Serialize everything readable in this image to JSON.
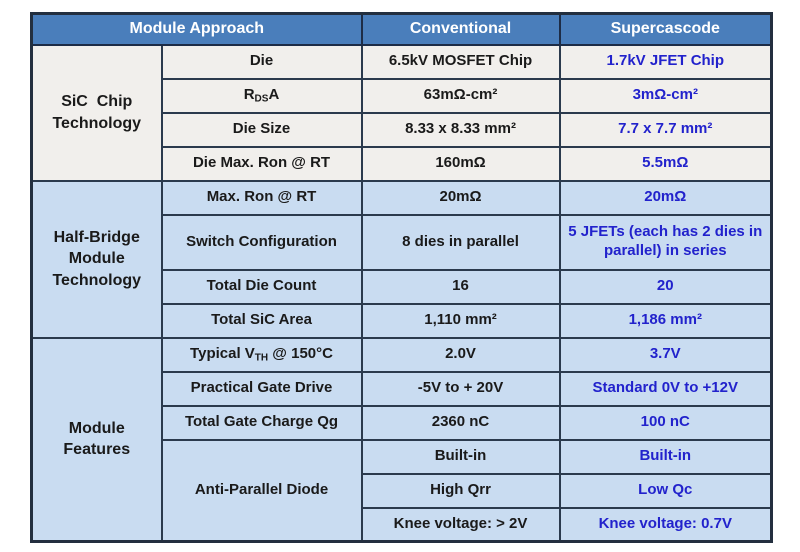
{
  "header": {
    "module_approach": "Module Approach",
    "conventional": "Conventional",
    "supercascode": "Supercascode"
  },
  "sections": [
    {
      "title": "SiC  Chip\nTechnology",
      "rows": [
        {
          "param": "Die",
          "conventional": "6.5kV MOSFET Chip",
          "supercascode": "1.7kV JFET Chip"
        },
        {
          "param_pre": "R",
          "param_sub": "DS",
          "param_post": "A",
          "conventional": "63mΩ-cm²",
          "supercascode": "3mΩ-cm²"
        },
        {
          "param": "Die Size",
          "conventional": "8.33 x 8.33 mm²",
          "supercascode": "7.7 x 7.7 mm²"
        },
        {
          "param": "Die Max. Ron @ RT",
          "conventional": "160mΩ",
          "supercascode": "5.5mΩ"
        }
      ]
    },
    {
      "title": "Half-Bridge\nModule\nTechnology",
      "rows": [
        {
          "param": "Max. Ron @ RT",
          "conventional": "20mΩ",
          "supercascode": "20mΩ"
        },
        {
          "param": "Switch Configuration",
          "conventional": "8 dies in parallel",
          "supercascode": "5 JFETs (each has 2 dies in parallel) in series"
        },
        {
          "param": "Total Die Count",
          "conventional": "16",
          "supercascode": "20"
        },
        {
          "param": "Total SiC Area",
          "conventional": "1,110 mm²",
          "supercascode": "1,186 mm²"
        }
      ]
    },
    {
      "title": "Module\nFeatures",
      "rows": [
        {
          "param_pre": "Typical V",
          "param_sub": "TH",
          "param_post": " @ 150°C",
          "conventional": "2.0V",
          "supercascode": "3.7V"
        },
        {
          "param": "Practical Gate Drive",
          "conventional": "-5V to + 20V",
          "supercascode": "Standard 0V to +12V"
        },
        {
          "param": "Total Gate Charge Qg",
          "conventional": "2360 nC",
          "supercascode": "100 nC"
        },
        {
          "param": "Anti-Parallel Diode",
          "conventional": "Built-in",
          "supercascode": "Built-in"
        },
        {
          "conventional": "High Qrr",
          "supercascode": "Low Qc"
        },
        {
          "conventional": "Knee voltage: > 2V",
          "supercascode": "Knee voltage: 0.7V"
        }
      ]
    }
  ],
  "colors": {
    "header_bg": "#4a7ebb",
    "header_text": "#ffffff",
    "section1_bg": "#f1efec",
    "section_blue_bg": "#c9dcf1",
    "conventional_text": "#1a1a1a",
    "supercascode_text": "#2222cc",
    "grid_border": "#2b3a4d"
  }
}
